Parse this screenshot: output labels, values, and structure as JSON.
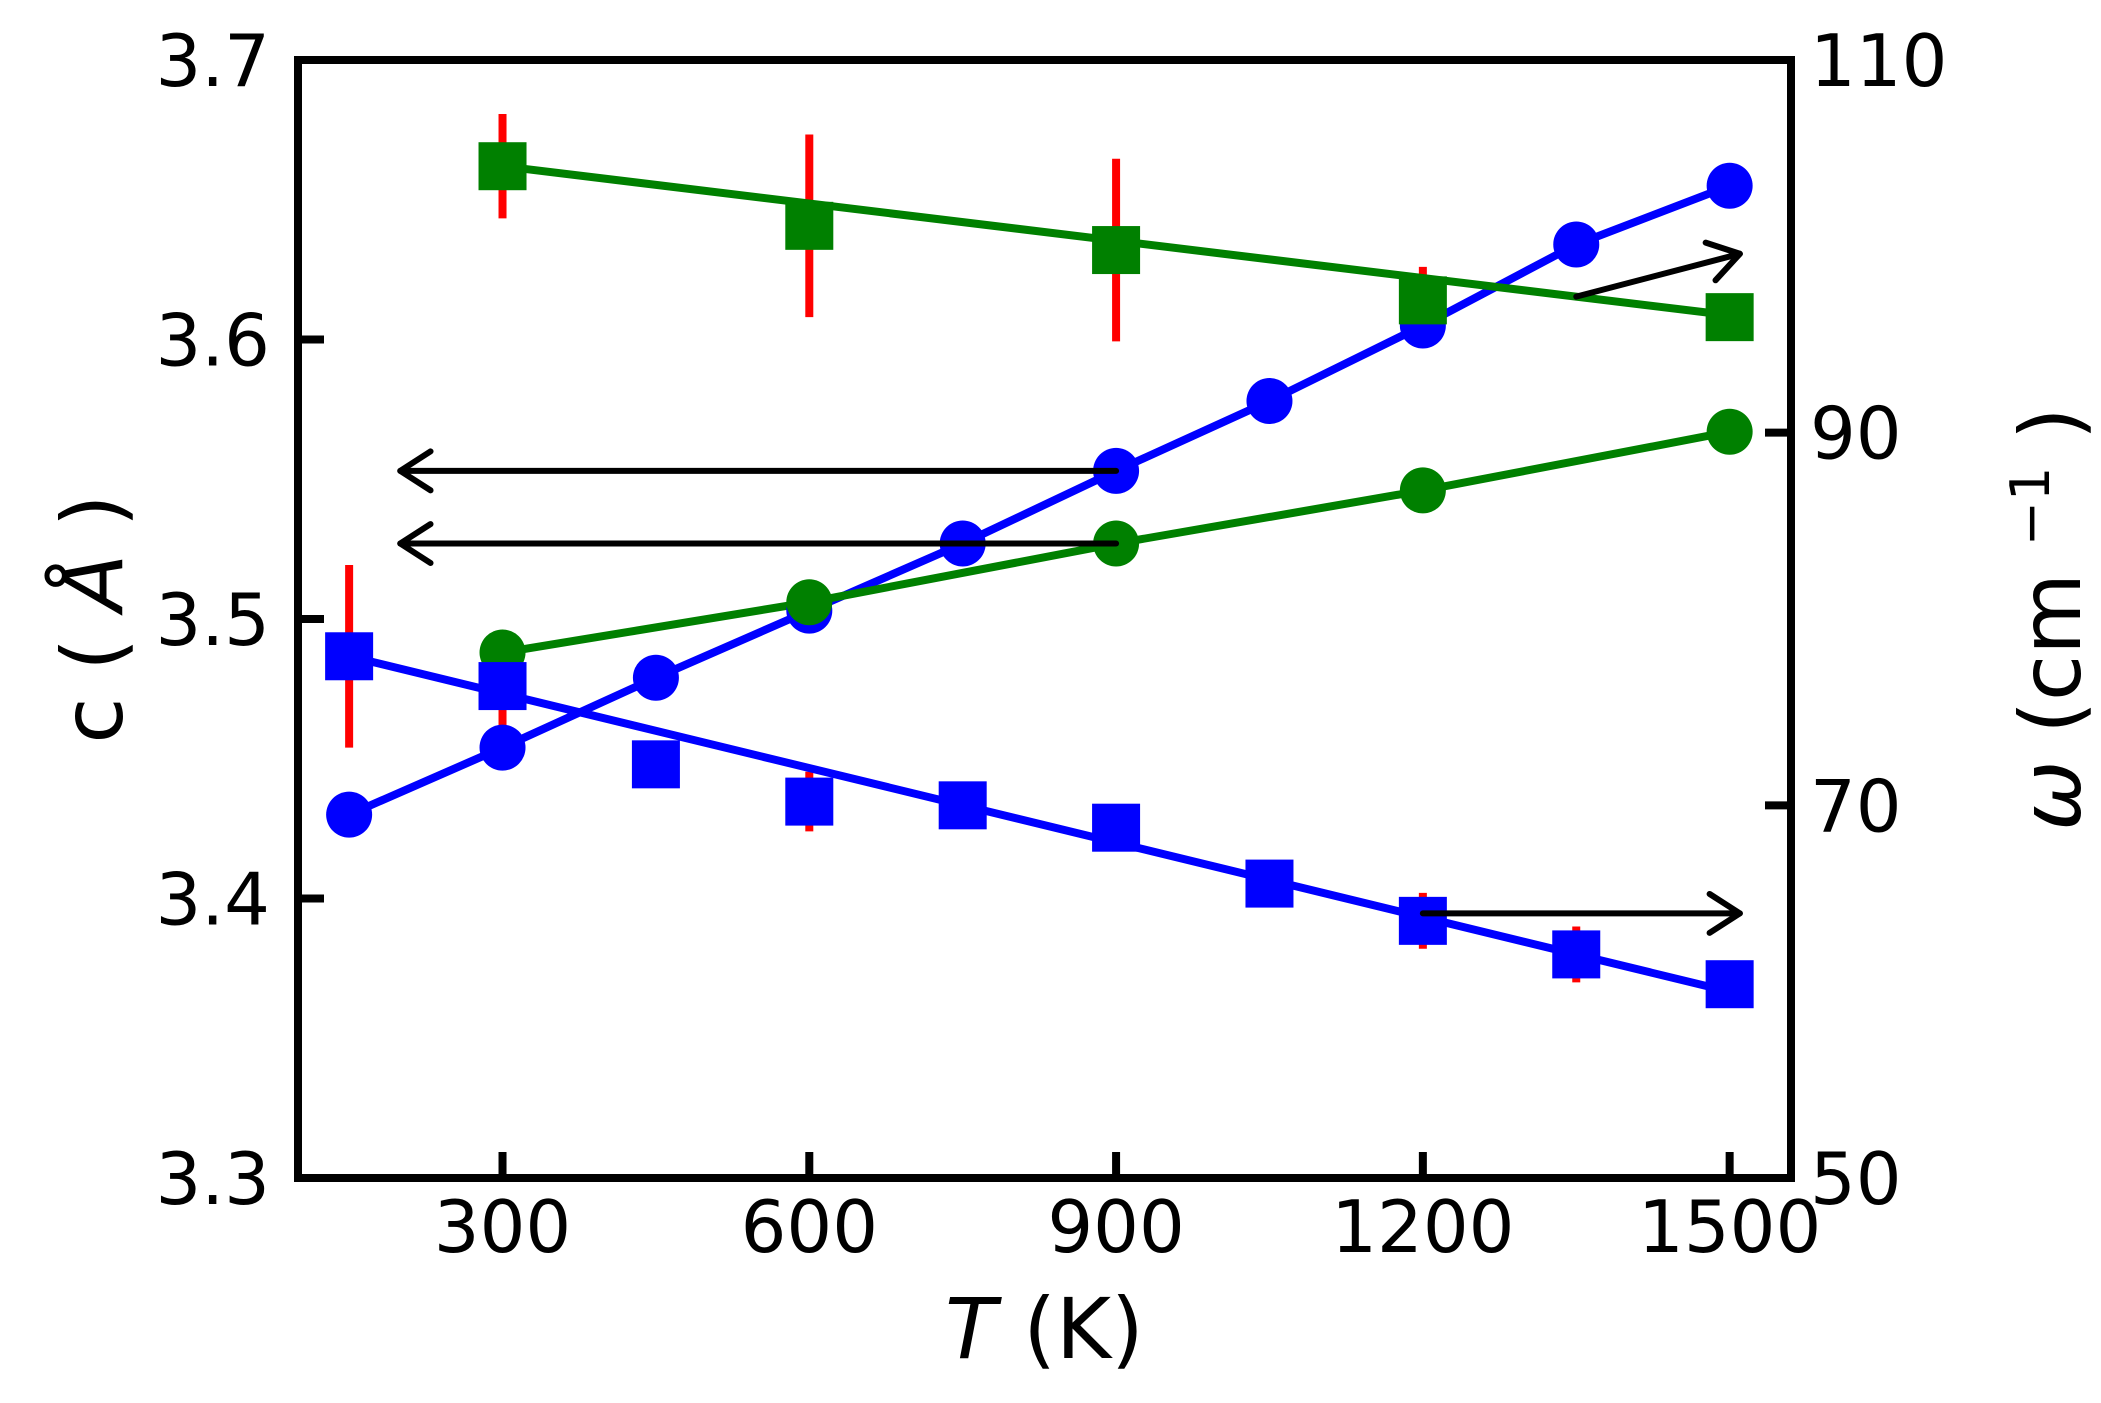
{
  "chart_data": {
    "type": "line",
    "title": "",
    "xlabel": {
      "symbol": "T",
      "unit": "(K)"
    },
    "ylabel_left": {
      "base": "c",
      "open": "(",
      "unit": "Å",
      "close": ")"
    },
    "ylabel_right": {
      "symbol": "ω",
      "unit_open": "(cm",
      "unit_sup": "−1",
      "unit_close": ")"
    },
    "xlim": [
      100,
      1560
    ],
    "ylim_left": [
      3.3,
      3.7
    ],
    "ylim_right": [
      50,
      110
    ],
    "x_ticks": [
      300,
      600,
      900,
      1200,
      1500
    ],
    "x_tick_labels": [
      "300",
      "600",
      "900",
      "1200",
      "1500"
    ],
    "y_left_ticks": [
      3.3,
      3.4,
      3.5,
      3.6,
      3.7
    ],
    "y_left_tick_labels": [
      "3.3",
      "3.4",
      "3.5",
      "3.6",
      "3.7"
    ],
    "y_right_ticks": [
      50,
      70,
      90,
      110
    ],
    "y_right_tick_labels": [
      "50",
      "70",
      "90",
      "110"
    ],
    "series": [
      {
        "name": "c (blue circles)",
        "axis": "left",
        "color": "#0000ff",
        "marker": "circle",
        "points": [
          {
            "x": 150,
            "y": 3.43
          },
          {
            "x": 300,
            "y": 3.454
          },
          {
            "x": 450,
            "y": 3.479
          },
          {
            "x": 600,
            "y": 3.503
          },
          {
            "x": 750,
            "y": 3.527
          },
          {
            "x": 900,
            "y": 3.553
          },
          {
            "x": 1050,
            "y": 3.578
          },
          {
            "x": 1200,
            "y": 3.605
          },
          {
            "x": 1350,
            "y": 3.634
          },
          {
            "x": 1500,
            "y": 3.655
          }
        ]
      },
      {
        "name": "c (green circles)",
        "axis": "left",
        "color": "#008000",
        "marker": "circle",
        "points": [
          {
            "x": 300,
            "y": 3.488
          },
          {
            "x": 600,
            "y": 3.506
          },
          {
            "x": 900,
            "y": 3.527
          },
          {
            "x": 1200,
            "y": 3.546
          },
          {
            "x": 1500,
            "y": 3.567
          }
        ]
      },
      {
        "name": "ω (blue squares)",
        "axis": "right",
        "color": "#0000ff",
        "marker": "square",
        "fit": [
          78,
          60
        ],
        "points": [
          {
            "x": 150,
            "y": 78.0,
            "err": 4.9
          },
          {
            "x": 300,
            "y": 76.4,
            "err": 2.3
          },
          {
            "x": 450,
            "y": 72.2,
            "err": 0.9
          },
          {
            "x": 600,
            "y": 70.2,
            "err": 1.6
          },
          {
            "x": 750,
            "y": 70.0,
            "err": 0.7
          },
          {
            "x": 900,
            "y": 68.8,
            "err": 1.2
          },
          {
            "x": 1050,
            "y": 65.8,
            "err": 0.8
          },
          {
            "x": 1200,
            "y": 63.8,
            "err": 1.5
          },
          {
            "x": 1350,
            "y": 62.0,
            "err": 1.5
          },
          {
            "x": 1500,
            "y": 60.4,
            "err": 0.6
          }
        ]
      },
      {
        "name": "ω (green squares)",
        "axis": "right",
        "color": "#008000",
        "marker": "square",
        "fit": [
          104.3,
          96.3
        ],
        "points": [
          {
            "x": 300,
            "y": 104.3,
            "err": 2.8
          },
          {
            "x": 600,
            "y": 101.1,
            "err": 4.9
          },
          {
            "x": 900,
            "y": 99.8,
            "err": 4.9
          },
          {
            "x": 1200,
            "y": 97.1,
            "err": 1.8
          },
          {
            "x": 1500,
            "y": 96.2,
            "err": 0
          }
        ]
      }
    ],
    "annotations": [
      {
        "kind": "arrow",
        "from": {
          "x": 900,
          "y": 3.553
        },
        "to": {
          "x": 200,
          "y": 3.553
        },
        "axis": "left",
        "points_to": "left axis"
      },
      {
        "kind": "arrow",
        "from": {
          "x": 900,
          "y": 3.527
        },
        "to": {
          "x": 200,
          "y": 3.527
        },
        "axis": "left",
        "points_to": "left axis"
      },
      {
        "kind": "arrow",
        "from": {
          "x": 1350,
          "y": 97.3
        },
        "to": {
          "x": 1510,
          "y": 99.6
        },
        "axis": "right",
        "points_to": "right axis"
      },
      {
        "kind": "arrow",
        "from": {
          "x": 1200,
          "y": 64.2
        },
        "to": {
          "x": 1510,
          "y": 64.2
        },
        "axis": "right",
        "points_to": "right axis"
      }
    ],
    "colors": {
      "axis": "#000000",
      "error_bar": "#ff0000",
      "arrow": "#000000"
    }
  }
}
